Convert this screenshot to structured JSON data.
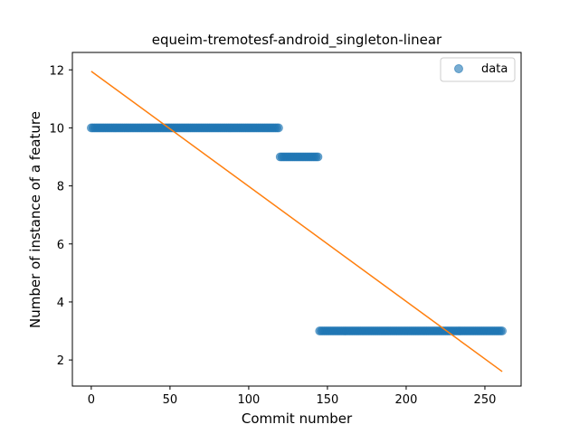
{
  "chart_data": {
    "type": "scatter",
    "title": "equeim-tremotesf-android_singleton-linear",
    "xlabel": "Commit number",
    "ylabel": "Number of instance of a feature",
    "xlim": [
      -12,
      273
    ],
    "ylim": [
      1.1,
      12.6
    ],
    "xticks": [
      0,
      50,
      100,
      150,
      200,
      250
    ],
    "yticks": [
      2,
      4,
      6,
      8,
      10,
      12
    ],
    "grid": false,
    "legend_position": "top-right",
    "colors": {
      "data": "#1f77b4",
      "fit": "#ff7f0e"
    },
    "series": [
      {
        "name": "data",
        "kind": "scatter",
        "segments": [
          {
            "x_start": 0,
            "x_end": 119,
            "y": 10
          },
          {
            "x_start": 120,
            "x_end": 144,
            "y": 9
          },
          {
            "x_start": 145,
            "x_end": 261,
            "y": 3
          }
        ]
      },
      {
        "kind": "line",
        "x": [
          0,
          261
        ],
        "y": [
          11.95,
          1.6
        ]
      }
    ]
  }
}
